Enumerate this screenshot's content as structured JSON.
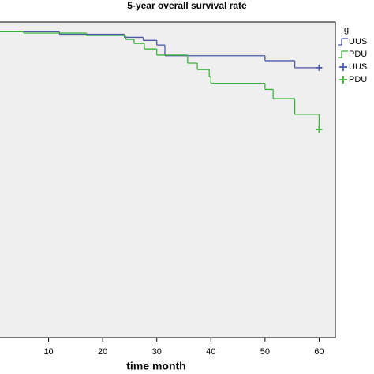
{
  "chart_data": {
    "type": "kaplan-meier",
    "title": "5-year overall survival rate",
    "x_label": "time month",
    "legend_title": "g",
    "xlim": [
      0,
      63
    ],
    "xticks": [
      10,
      20,
      30,
      40,
      50,
      60
    ],
    "ylim": [
      0,
      1.03
    ],
    "series": [
      {
        "name": "UUS",
        "color": "#4a5aa8",
        "kind": "step",
        "x": [
          0,
          12,
          24,
          27.5,
          30,
          31.5,
          50,
          55.5,
          60
        ],
        "values": [
          1,
          0.99,
          0.98,
          0.97,
          0.955,
          0.92,
          0.904,
          0.881,
          0.881
        ]
      },
      {
        "name": "PDU",
        "color": "#3cb43c",
        "kind": "step",
        "x": [
          0,
          5.4,
          17,
          24.3,
          25.8,
          27.7,
          30,
          35.7,
          37.5,
          39.7,
          40,
          50,
          51.5,
          55.5,
          60
        ],
        "values": [
          1,
          0.994,
          0.986,
          0.973,
          0.96,
          0.942,
          0.922,
          0.896,
          0.875,
          0.852,
          0.83,
          0.81,
          0.78,
          0.729,
          0.68
        ]
      },
      {
        "name": "UUS",
        "color": "#4a5aa8",
        "kind": "censored",
        "x": [
          60
        ],
        "values": [
          0.881
        ]
      },
      {
        "name": "PDU",
        "color": "#3cb43c",
        "kind": "censored",
        "x": [
          60
        ],
        "values": [
          0.68
        ]
      }
    ]
  }
}
